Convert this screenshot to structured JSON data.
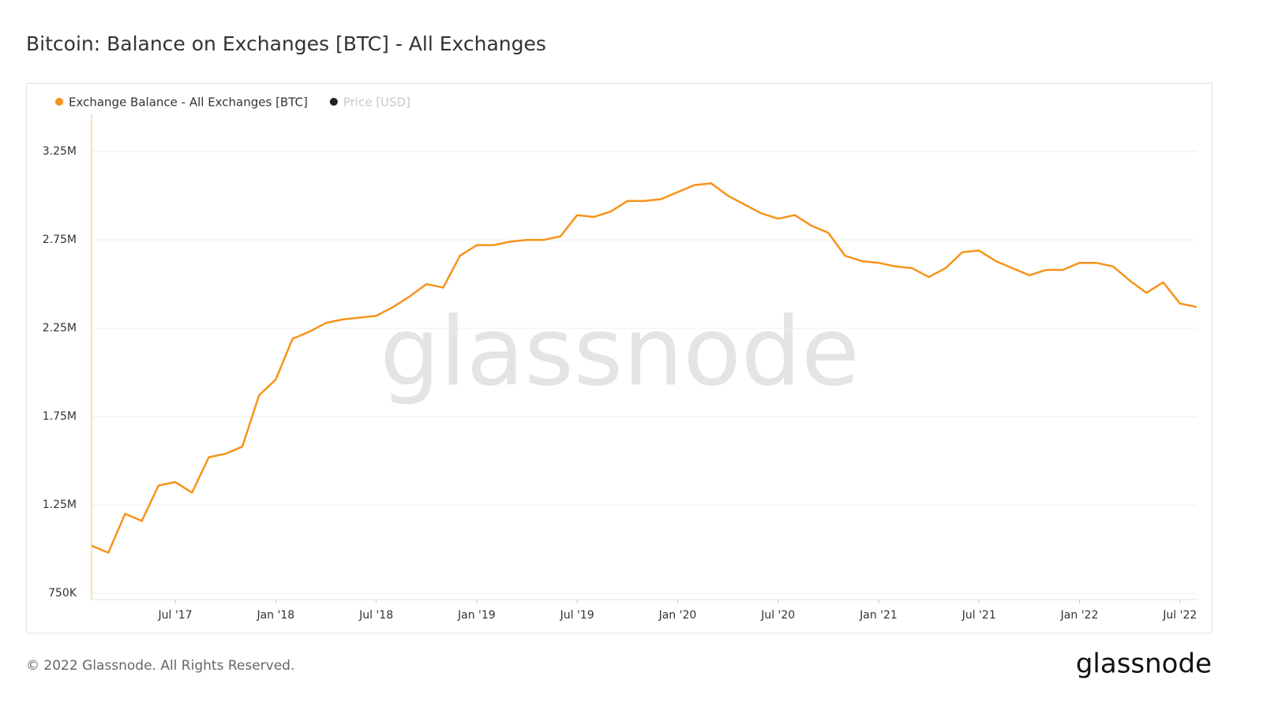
{
  "chart_data": {
    "type": "line",
    "title": "Bitcoin: Balance on Exchanges [BTC] - All Exchanges",
    "watermark": "glassnode",
    "footer": "© 2022 Glassnode. All Rights Reserved.",
    "logo": "glassnode",
    "x": [
      "2017-02",
      "2017-03",
      "2017-04",
      "2017-05",
      "2017-06",
      "2017-07",
      "2017-08",
      "2017-09",
      "2017-10",
      "2017-11",
      "2017-12",
      "2018-01",
      "2018-02",
      "2018-03",
      "2018-04",
      "2018-05",
      "2018-06",
      "2018-07",
      "2018-08",
      "2018-09",
      "2018-10",
      "2018-11",
      "2018-12",
      "2019-01",
      "2019-02",
      "2019-03",
      "2019-04",
      "2019-05",
      "2019-06",
      "2019-07",
      "2019-08",
      "2019-09",
      "2019-10",
      "2019-11",
      "2019-12",
      "2020-01",
      "2020-02",
      "2020-03",
      "2020-04",
      "2020-05",
      "2020-06",
      "2020-07",
      "2020-08",
      "2020-09",
      "2020-10",
      "2020-11",
      "2020-12",
      "2021-01",
      "2021-02",
      "2021-03",
      "2021-04",
      "2021-05",
      "2021-06",
      "2021-07",
      "2021-08",
      "2021-09",
      "2021-10",
      "2021-11",
      "2021-12",
      "2022-01",
      "2022-02",
      "2022-03",
      "2022-04",
      "2022-05",
      "2022-06",
      "2022-07",
      "2022-08"
    ],
    "series": [
      {
        "name": "Exchange Balance - All Exchanges [BTC]",
        "color": "#f7931a",
        "values": [
          1020000,
          980000,
          1200000,
          1160000,
          1360000,
          1380000,
          1320000,
          1520000,
          1540000,
          1580000,
          1870000,
          1960000,
          2190000,
          2230000,
          2280000,
          2300000,
          2310000,
          2320000,
          2370000,
          2430000,
          2500000,
          2480000,
          2660000,
          2720000,
          2720000,
          2740000,
          2750000,
          2750000,
          2770000,
          2890000,
          2880000,
          2910000,
          2970000,
          2970000,
          2980000,
          3020000,
          3060000,
          3070000,
          3000000,
          2950000,
          2900000,
          2870000,
          2890000,
          2830000,
          2790000,
          2660000,
          2630000,
          2620000,
          2600000,
          2590000,
          2540000,
          2590000,
          2680000,
          2690000,
          2630000,
          2590000,
          2550000,
          2580000,
          2580000,
          2620000,
          2620000,
          2600000,
          2520000,
          2450000,
          2510000,
          2390000,
          2370000
        ]
      },
      {
        "name": "Price [USD]",
        "color": "#222222",
        "hidden": true,
        "values": [
          null,
          null,
          null,
          null,
          null,
          null,
          null,
          null,
          null,
          null,
          null,
          null,
          null,
          null,
          null,
          null,
          null,
          null,
          null,
          null,
          null,
          null,
          null,
          null,
          null,
          null,
          null,
          null,
          null,
          null,
          null,
          null,
          null,
          null,
          null,
          null,
          null,
          null,
          null,
          null,
          null,
          null,
          null,
          null,
          null,
          null,
          null,
          null,
          null,
          null,
          null,
          null,
          null,
          null,
          null,
          null,
          null,
          null,
          null,
          null,
          null,
          null,
          null,
          null,
          null,
          null,
          null
        ]
      }
    ],
    "xlim": [
      "2017-02",
      "2022-08"
    ],
    "xticks": [
      {
        "value": "2017-07",
        "label": "Jul '17"
      },
      {
        "value": "2018-01",
        "label": "Jan '18"
      },
      {
        "value": "2018-07",
        "label": "Jul '18"
      },
      {
        "value": "2019-01",
        "label": "Jan '19"
      },
      {
        "value": "2019-07",
        "label": "Jul '19"
      },
      {
        "value": "2020-01",
        "label": "Jan '20"
      },
      {
        "value": "2020-07",
        "label": "Jul '20"
      },
      {
        "value": "2021-01",
        "label": "Jan '21"
      },
      {
        "value": "2021-07",
        "label": "Jul '21"
      },
      {
        "value": "2022-01",
        "label": "Jan '22"
      },
      {
        "value": "2022-07",
        "label": "Jul '22"
      }
    ],
    "ylim": [
      715000,
      3460000
    ],
    "yticks": [
      {
        "value": 750000,
        "label": "750K"
      },
      {
        "value": 1250000,
        "label": "1.25M"
      },
      {
        "value": 1750000,
        "label": "1.75M"
      },
      {
        "value": 2250000,
        "label": "2.25M"
      },
      {
        "value": 2750000,
        "label": "2.75M"
      },
      {
        "value": 3250000,
        "label": "3.25M"
      }
    ],
    "grid": true
  }
}
